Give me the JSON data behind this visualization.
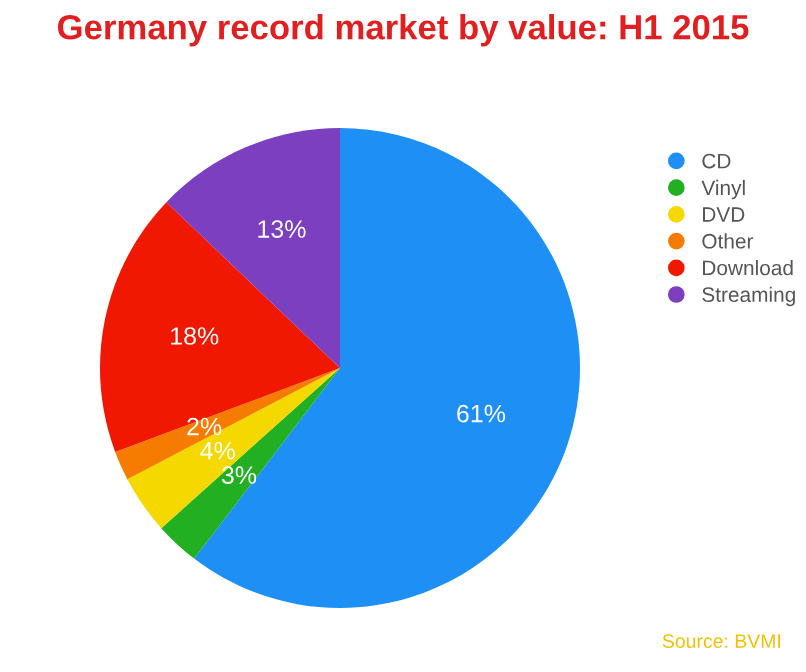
{
  "chart_data": {
    "type": "pie",
    "title": "Germany record market by value: H1 2015",
    "categories": [
      "CD",
      "Vinyl",
      "DVD",
      "Other",
      "Download",
      "Streaming"
    ],
    "values": [
      61,
      3,
      4,
      2,
      18,
      13
    ],
    "colors": [
      "#1e8ff5",
      "#22b022",
      "#f5d800",
      "#f57c00",
      "#f01800",
      "#7b3fbf"
    ],
    "value_labels": [
      "61%",
      "3%",
      "4%",
      "2%",
      "18%",
      "13%"
    ],
    "legend": "right",
    "annotations": [
      "Source: BVMI"
    ]
  }
}
